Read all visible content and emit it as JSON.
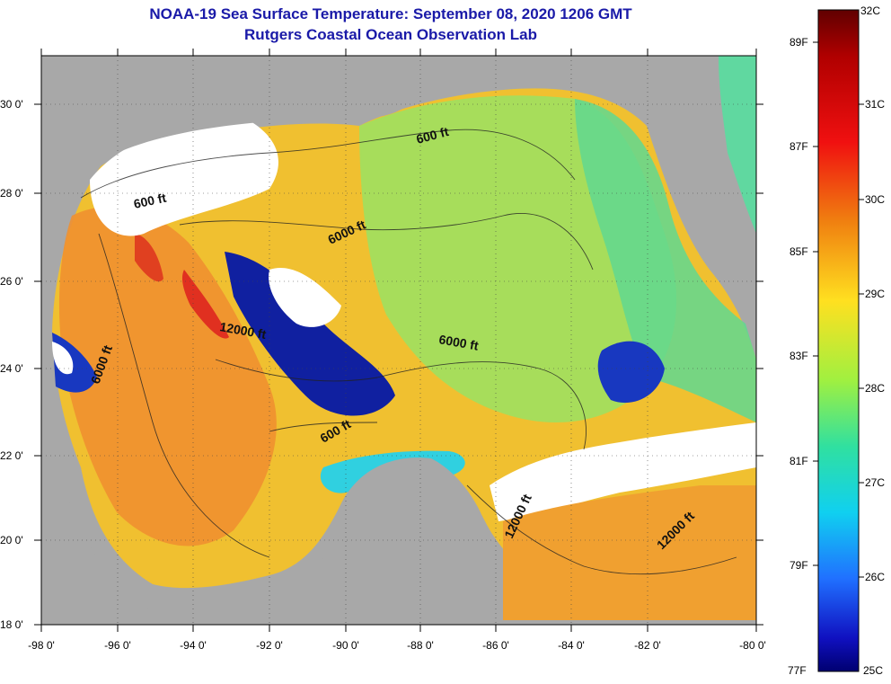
{
  "title": {
    "line1": "NOAA-19 Sea Surface Temperature:  September 08, 2020 1206 GMT",
    "line2": "Rutgers Coastal Ocean Observation Lab"
  },
  "axes": {
    "lat_labels": [
      "30 0'",
      "28 0'",
      "26 0'",
      "24 0'",
      "22 0'",
      "20 0'",
      "18 0'"
    ],
    "lon_labels": [
      "-98 0'",
      "-96 0'",
      "-94 0'",
      "-92 0'",
      "-90 0'",
      "-88 0'",
      "-86 0'",
      "-84 0'",
      "-82 0'",
      "-80 0'"
    ]
  },
  "contour_labels": [
    "600 ft",
    "600 ft",
    "6000 ft",
    "12000 ft",
    "6000 ft",
    "6000 ft",
    "600 ft",
    "12000 ft",
    "12000 ft"
  ],
  "colorbar": {
    "celsius": [
      "32C",
      "31C",
      "30C",
      "29C",
      "28C",
      "27C",
      "26C",
      "25C"
    ],
    "fahrenheit": [
      "89F",
      "87F",
      "85F",
      "83F",
      "81F",
      "79F",
      "77F"
    ],
    "colors": [
      "#7a0000",
      "#d01010",
      "#f07010",
      "#ffff20",
      "#40e080",
      "#10d0e0",
      "#2060ff",
      "#000080"
    ]
  }
}
